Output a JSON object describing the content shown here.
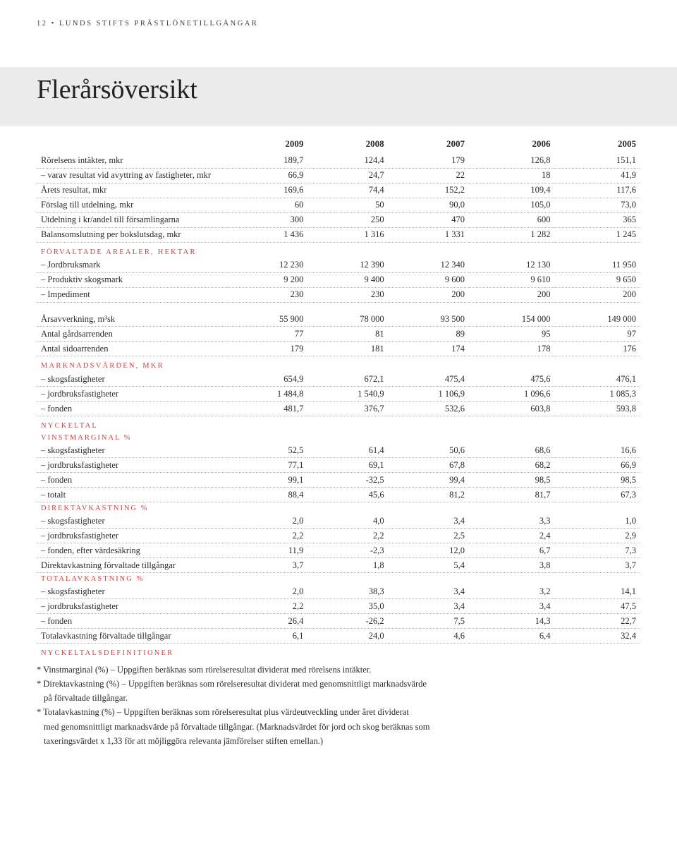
{
  "header": {
    "page_num": "12",
    "sep": "•",
    "title": "LUNDS STIFTS PRÄSTLÖNETILLGÅNGAR"
  },
  "title": "Flerårsöversikt",
  "years": [
    "2009",
    "2008",
    "2007",
    "2006",
    "2005"
  ],
  "rows": [
    {
      "label": "Rörelsens intäkter, mkr",
      "v": [
        "189,7",
        "124,4",
        "179",
        "126,8",
        "151,1"
      ],
      "dotted": true
    },
    {
      "label": "– varav resultat vid avyttring av fastigheter, mkr",
      "v": [
        "66,9",
        "24,7",
        "22",
        "18",
        "41,9"
      ],
      "dotted": true
    },
    {
      "label": "Årets resultat, mkr",
      "v": [
        "169,6",
        "74,4",
        "152,2",
        "109,4",
        "117,6"
      ],
      "dotted": true
    },
    {
      "label": "Förslag till utdelning, mkr",
      "v": [
        "60",
        "50",
        "90,0",
        "105,0",
        "73,0"
      ],
      "dotted": true
    },
    {
      "label": "Utdelning i kr/andel till församlingarna",
      "v": [
        "300",
        "250",
        "470",
        "600",
        "365"
      ],
      "dotted": true
    },
    {
      "label": "Balansomslutning per bokslutsdag, mkr",
      "v": [
        "1 436",
        "1 316",
        "1 331",
        "1 282",
        "1 245"
      ],
      "dotted": true
    },
    {
      "section": "FÖRVALTADE AREALER, HEKTAR"
    },
    {
      "label": "– Jordbruksmark",
      "v": [
        "12 230",
        "12 390",
        "12 340",
        "12 130",
        "11 950"
      ],
      "dotted": true
    },
    {
      "label": "– Produktiv skogsmark",
      "v": [
        "9 200",
        "9 400",
        "9 600",
        "9 610",
        "9 650"
      ],
      "dotted": true
    },
    {
      "label": "– Impediment",
      "v": [
        "230",
        "230",
        "200",
        "200",
        "200"
      ],
      "dotted": true
    },
    {
      "spacer": true
    },
    {
      "label": "Årsavverkning, m³sk",
      "v": [
        "55 900",
        "78 000",
        "93 500",
        "154 000",
        "149 000"
      ],
      "dotted": true
    },
    {
      "label": "Antal gårdsarrenden",
      "v": [
        "77",
        "81",
        "89",
        "95",
        "97"
      ],
      "dotted": true
    },
    {
      "label": "Antal sidoarrenden",
      "v": [
        "179",
        "181",
        "174",
        "178",
        "176"
      ],
      "dotted": true
    },
    {
      "section": "MARKNADSVÄRDEN, MKR"
    },
    {
      "label": "– skogsfastigheter",
      "v": [
        "654,9",
        "672,1",
        "475,4",
        "475,6",
        "476,1"
      ],
      "dotted": true
    },
    {
      "label": "– jordbruksfastigheter",
      "v": [
        "1 484,8",
        "1 540,9",
        "1 106,9",
        "1 096,6",
        "1 085,3"
      ],
      "dotted": true
    },
    {
      "label": "– fonden",
      "v": [
        "481,7",
        "376,7",
        "532,6",
        "603,8",
        "593,8"
      ],
      "dotted": true
    },
    {
      "section": "NYCKELTAL"
    },
    {
      "sub": "VINSTMARGINAL %"
    },
    {
      "label": "– skogsfastigheter",
      "v": [
        "52,5",
        "61,4",
        "50,6",
        "68,6",
        "16,6"
      ],
      "dotted": true
    },
    {
      "label": "– jordbruksfastigheter",
      "v": [
        "77,1",
        "69,1",
        "67,8",
        "68,2",
        "66,9"
      ],
      "dotted": true
    },
    {
      "label": "– fonden",
      "v": [
        "99,1",
        "-32,5",
        "99,4",
        "98,5",
        "98,5"
      ],
      "dotted": true
    },
    {
      "label": "– totalt",
      "v": [
        "88,4",
        "45,6",
        "81,2",
        "81,7",
        "67,3"
      ],
      "dotted": true
    },
    {
      "sub": "DIREKTAVKASTNING %"
    },
    {
      "label": "– skogsfastigheter",
      "v": [
        "2,0",
        "4,0",
        "3,4",
        "3,3",
        "1,0"
      ],
      "dotted": true
    },
    {
      "label": "– jordbruksfastigheter",
      "v": [
        "2,2",
        "2,2",
        "2,5",
        "2,4",
        "2,9"
      ],
      "dotted": true
    },
    {
      "label": "– fonden, efter värdesäkring",
      "v": [
        "11,9",
        "-2,3",
        "12,0",
        "6,7",
        "7,3"
      ],
      "dotted": true
    },
    {
      "label": "Direktavkastning förvaltade tillgångar",
      "v": [
        "3,7",
        "1,8",
        "5,4",
        "3,8",
        "3,7"
      ],
      "dotted": true
    },
    {
      "sub": "TOTALAVKASTNING %"
    },
    {
      "label": "– skogsfastigheter",
      "v": [
        "2,0",
        "38,3",
        "3,4",
        "3,2",
        "14,1"
      ],
      "dotted": true
    },
    {
      "label": "– jordbruksfastigheter",
      "v": [
        "2,2",
        "35,0",
        "3,4",
        "3,4",
        "47,5"
      ],
      "dotted": true
    },
    {
      "label": "– fonden",
      "v": [
        "26,4",
        "-26,2",
        "7,5",
        "14,3",
        "22,7"
      ],
      "dotted": true
    },
    {
      "label": "Totalavkastning förvaltade tillgångar",
      "v": [
        "6,1",
        "24,0",
        "4,6",
        "6,4",
        "32,4"
      ],
      "dotted": true
    },
    {
      "section": "NYCKELTALSDEFINITIONER"
    }
  ],
  "footnotes": [
    "* Vinstmarginal (%) – Uppgiften beräknas som rörelseresultat dividerat med rörelsens intäkter.",
    "* Direktavkastning (%) – Uppgiften beräknas som rörelseresultat dividerat med genomsnittligt marknadsvärde",
    "   på förvaltade tillgångar.",
    "* Totalavkastning (%) – Uppgiften beräknas som rörelseresultat plus värdeutveckling under året dividerat",
    "   med genomsnittligt marknadsvärde på förvaltade tillgångar. (Marknadsvärdet för jord och skog beräknas som",
    "   taxeringsvärdet x 1,33 för att möjliggöra relevanta jämförelser stiften emellan.)"
  ],
  "colors": {
    "accent": "#cc4444",
    "dotted": "#b8b8b8",
    "band": "#ececec",
    "text": "#2a2a2a"
  }
}
